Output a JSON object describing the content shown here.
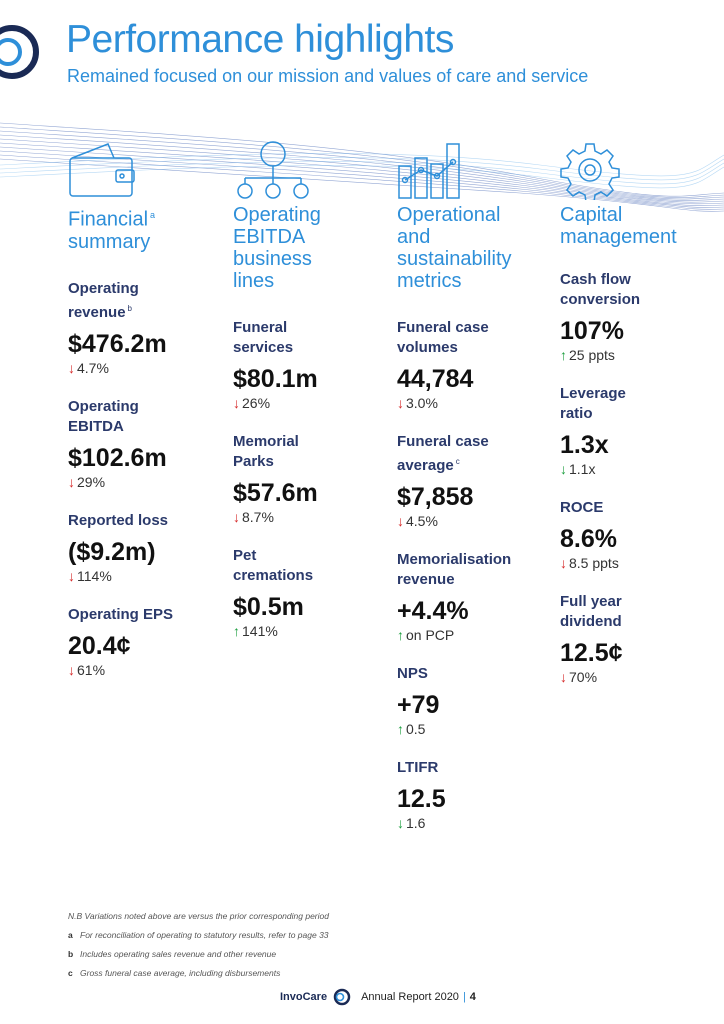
{
  "header": {
    "title": "Performance highlights",
    "subtitle": "Remained focused on our mission and values of care and service"
  },
  "columns": [
    {
      "title_line1": "Financial",
      "title_sup": "a",
      "title_line2": "summary",
      "metrics": [
        {
          "label_line1": "Operating",
          "label_line2": "revenue",
          "label_sup": "b",
          "value": "$476.2m",
          "change": "4.7%",
          "direction": "down"
        },
        {
          "label_line1": "Operating",
          "label_line2": "EBITDA",
          "value": "$102.6m",
          "change": "29%",
          "direction": "down"
        },
        {
          "label_line1": "Reported loss",
          "value": "($9.2m)",
          "change": "114%",
          "direction": "down"
        },
        {
          "label_line1": "Operating EPS",
          "value": "20.4¢",
          "change": "61%",
          "direction": "down"
        }
      ]
    },
    {
      "title_lines": [
        "Operating",
        "EBITDA",
        "business",
        "lines"
      ],
      "metrics": [
        {
          "label_line1": "Funeral",
          "label_line2": "services",
          "value": "$80.1m",
          "change": "26%",
          "direction": "down"
        },
        {
          "label_line1": "Memorial",
          "label_line2": "Parks",
          "value": "$57.6m",
          "change": "8.7%",
          "direction": "down"
        },
        {
          "label_line1": "Pet",
          "label_line2": "cremations",
          "value": "$0.5m",
          "change": "141%",
          "direction": "up"
        }
      ]
    },
    {
      "title_lines": [
        "Operational",
        "and",
        "sustainability",
        "metrics"
      ],
      "metrics": [
        {
          "label_line1": "Funeral case",
          "label_line2": "volumes",
          "value": "44,784",
          "change": "3.0%",
          "direction": "down"
        },
        {
          "label_line1": "Funeral case",
          "label_line2": "average",
          "label_sup": "c",
          "value": "$7,858",
          "change": "4.5%",
          "direction": "down"
        },
        {
          "label_line1": "Memorialisation",
          "label_line2": "revenue",
          "value": "+4.4%",
          "change": "on PCP",
          "direction": "up"
        },
        {
          "label_line1": "NPS",
          "value": "+79",
          "change": "0.5",
          "direction": "up"
        },
        {
          "label_line1": "LTIFR",
          "value": "12.5",
          "change": "1.6",
          "direction": "down-good"
        }
      ]
    },
    {
      "title_lines": [
        "Capital",
        "management"
      ],
      "metrics": [
        {
          "label_line1": "Cash flow",
          "label_line2": "conversion",
          "value": "107%",
          "change": "25 ppts",
          "direction": "up"
        },
        {
          "label_line1": "Leverage",
          "label_line2": "ratio",
          "value": "1.3x",
          "change": "1.1x",
          "direction": "down-good"
        },
        {
          "label_line1": "ROCE",
          "value": "8.6%",
          "change": "8.5 ppts",
          "direction": "down"
        },
        {
          "label_line1": "Full year",
          "label_line2": "dividend",
          "value": "12.5¢",
          "change": "70%",
          "direction": "down"
        }
      ]
    }
  ],
  "arrows": {
    "down": "↓",
    "up": "↑"
  },
  "colors": {
    "accent": "#2e8fd9",
    "navy": "#2b3a6b",
    "down": "#d62a2a",
    "up": "#1b9e3e"
  },
  "notes": {
    "intro": "N.B Variations noted above are versus the prior corresponding period",
    "a_key": "a",
    "a": "For reconciliation of operating to statutory results, refer to page 33",
    "b_key": "b",
    "b": "Includes operating sales revenue and other revenue",
    "c_key": "c",
    "c": "Gross funeral case average, including disbursements"
  },
  "footer": {
    "brand": "InvoCare",
    "report": "Annual Report 2020",
    "separator": "|",
    "page": "4"
  }
}
